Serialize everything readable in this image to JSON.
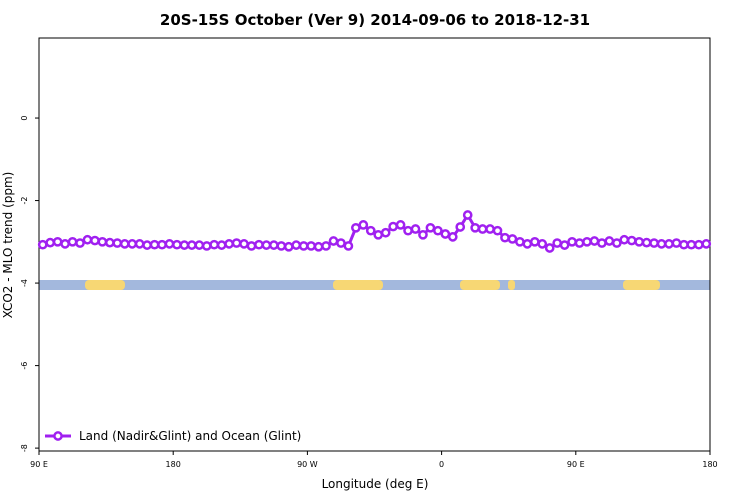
{
  "chart_data": {
    "type": "line",
    "title": "20S-15S October (Ver 9)   2014-09-06 to 2018-12-31",
    "x_label": "Longitude (deg E)",
    "y_label": "XCO2 - MLO trend (ppm)",
    "x": [
      92.5,
      97.5,
      102.5,
      107.5,
      112.5,
      117.5,
      122.5,
      127.5,
      132.5,
      137.5,
      142.5,
      147.5,
      152.5,
      157.5,
      162.5,
      167.5,
      172.5,
      177.5,
      182.5,
      187.5,
      192.5,
      197.5,
      202.5,
      207.5,
      212.5,
      217.5,
      222.5,
      227.5,
      232.5,
      237.5,
      242.5,
      247.5,
      252.5,
      257.5,
      262.5,
      267.5,
      272.5,
      277.5,
      282.5,
      287.5,
      292.5,
      297.5,
      302.5,
      307.5,
      312.5,
      317.5,
      322.5,
      327.5,
      332.5,
      337.5,
      342.5,
      347.5,
      352.5,
      357.5,
      362.5,
      367.5,
      372.5,
      377.5,
      382.5,
      387.5,
      392.5,
      397.5,
      402.5,
      407.5,
      412.5,
      417.5,
      422.5,
      427.5,
      432.5,
      437.5,
      442.5,
      447.5,
      452.5,
      457.5,
      462.5,
      467.5,
      472.5,
      477.5,
      482.5,
      487.5,
      492.5,
      497.5,
      502.5,
      507.5,
      512.5,
      517.5,
      522.5,
      527.5,
      532.5,
      537.5
    ],
    "series": [
      {
        "name": "Land (Nadir&Glint) and Ocean (Glint)",
        "color": "#a020f0",
        "values": [
          -3.07,
          -3.02,
          -3.0,
          -3.05,
          -3.0,
          -3.03,
          -2.95,
          -2.97,
          -3.0,
          -3.02,
          -3.03,
          -3.05,
          -3.05,
          -3.05,
          -3.08,
          -3.07,
          -3.07,
          -3.05,
          -3.07,
          -3.08,
          -3.08,
          -3.08,
          -3.1,
          -3.07,
          -3.08,
          -3.05,
          -3.03,
          -3.05,
          -3.1,
          -3.07,
          -3.08,
          -3.08,
          -3.1,
          -3.12,
          -3.08,
          -3.1,
          -3.1,
          -3.12,
          -3.1,
          -2.98,
          -3.03,
          -3.1,
          -2.66,
          -2.59,
          -2.73,
          -2.83,
          -2.78,
          -2.63,
          -2.59,
          -2.73,
          -2.69,
          -2.83,
          -2.66,
          -2.73,
          -2.81,
          -2.88,
          -2.64,
          -2.35,
          -2.66,
          -2.69,
          -2.69,
          -2.73,
          -2.9,
          -2.93,
          -3.0,
          -3.05,
          -3.0,
          -3.05,
          -3.15,
          -3.03,
          -3.08,
          -3.0,
          -3.03,
          -3.0,
          -2.98,
          -3.03,
          -2.98,
          -3.03,
          -2.95,
          -2.97,
          -3.0,
          -3.02,
          -3.03,
          -3.05,
          -3.05,
          -3.03,
          -3.07,
          -3.07,
          -3.07,
          -3.05
        ]
      }
    ],
    "xlim": [
      90,
      540
    ],
    "xticks": [
      {
        "value": 90,
        "label": "90 E"
      },
      180,
      {
        "value": 270,
        "label": "90 W"
      },
      {
        "value": 360,
        "label": "0"
      },
      {
        "value": 450,
        "label": "90 E"
      },
      {
        "value": 540,
        "label": "180"
      }
    ],
    "ylim": [
      -8.07,
      1.94
    ],
    "yticks": [
      -8,
      -6,
      -4,
      -2,
      0
    ],
    "legend": "bottom-left"
  }
}
